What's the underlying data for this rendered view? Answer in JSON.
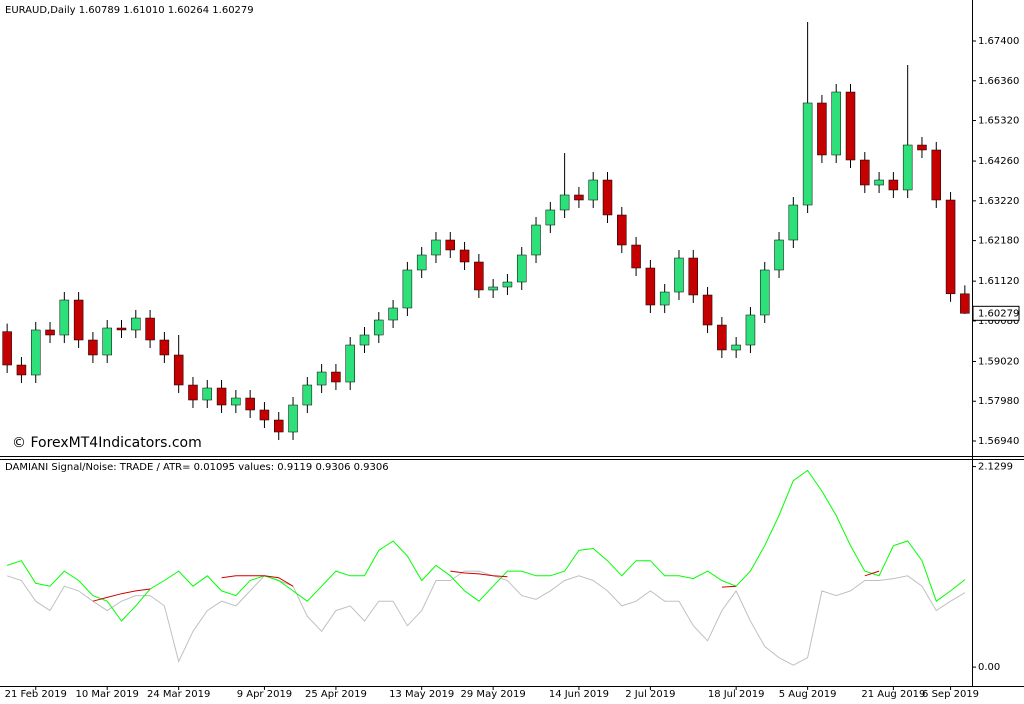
{
  "chart_data": [
    {
      "type": "candlestick",
      "title": "EURAUD,Daily  1.60789 1.61010 1.60264 1.60279",
      "watermark": "© ForexMT4Indicators.com",
      "last_price_label": "1.60279",
      "categories": [
        null,
        null,
        "21 Feb 2019",
        null,
        null,
        null,
        null,
        "10 Mar 2019",
        null,
        null,
        null,
        null,
        "24 Mar 2019",
        null,
        null,
        null,
        null,
        null,
        "9 Apr 2019",
        null,
        null,
        null,
        null,
        "25 Apr 2019",
        null,
        null,
        null,
        null,
        null,
        "13 May 2019",
        null,
        null,
        null,
        null,
        "29 May 2019",
        null,
        null,
        null,
        null,
        null,
        "14 Jun 2019",
        null,
        null,
        null,
        null,
        "2 Jul 2019",
        null,
        null,
        null,
        null,
        null,
        "18 Jul 2019",
        null,
        null,
        null,
        null,
        "5 Aug 2019",
        null,
        null,
        null,
        null,
        null,
        "21 Aug 2019",
        null,
        null,
        null,
        "6 Sep 2019",
        null
      ],
      "open": [
        1.598,
        1.58927,
        1.58666,
        1.59843,
        1.59712,
        1.60627,
        1.59581,
        1.59189,
        1.59895,
        1.59843,
        1.60156,
        1.59581,
        1.59189,
        1.58404,
        1.58012,
        1.58326,
        1.57881,
        1.58064,
        1.57751,
        1.57489,
        1.57175,
        1.57881,
        1.58404,
        1.58744,
        1.58483,
        1.5945,
        1.59712,
        1.60104,
        1.60418,
        1.61412,
        1.61804,
        1.62196,
        1.61935,
        1.61621,
        1.60889,
        1.60967,
        1.61098,
        1.61804,
        1.62588,
        1.62981,
        1.63373,
        1.63242,
        1.63765,
        1.6285,
        1.62065,
        1.61464,
        1.60496,
        1.60836,
        1.61725,
        1.60758,
        1.59973,
        1.5932,
        1.5945,
        1.60235,
        1.61412,
        1.62196,
        1.63111,
        1.65779,
        1.64419,
        1.66066,
        1.64288,
        1.63634,
        1.63765,
        1.63504,
        1.6468,
        1.6455,
        1.63242,
        1.60789
      ],
      "high": [
        1.6001,
        1.59137,
        1.60053,
        1.60053,
        1.60837,
        1.60837,
        1.59791,
        1.60105,
        1.60105,
        1.60366,
        1.60366,
        1.59791,
        1.59712,
        1.58614,
        1.58536,
        1.58536,
        1.58274,
        1.58274,
        1.57961,
        1.57699,
        1.58091,
        1.58614,
        1.58954,
        1.58954,
        1.5966,
        1.59922,
        1.60314,
        1.60628,
        1.61622,
        1.62014,
        1.62406,
        1.62406,
        1.62145,
        1.61831,
        1.61177,
        1.61308,
        1.62014,
        1.62798,
        1.63191,
        1.6447,
        1.63583,
        1.63975,
        1.63975,
        1.6306,
        1.62275,
        1.61674,
        1.61046,
        1.61935,
        1.61935,
        1.60968,
        1.60183,
        1.5966,
        1.60445,
        1.61622,
        1.62406,
        1.63321,
        1.67897,
        1.65989,
        1.66276,
        1.66276,
        1.64498,
        1.63975,
        1.63975,
        1.66772,
        1.6489,
        1.6476,
        1.63452,
        1.6101
      ],
      "low": [
        1.58717,
        1.58456,
        1.58456,
        1.59502,
        1.59502,
        1.59371,
        1.58979,
        1.58979,
        1.59633,
        1.59633,
        1.59371,
        1.58979,
        1.58194,
        1.57802,
        1.57802,
        1.57671,
        1.57671,
        1.57541,
        1.57279,
        1.56965,
        1.56965,
        1.57671,
        1.58194,
        1.58273,
        1.58273,
        1.5924,
        1.59502,
        1.59894,
        1.60208,
        1.61202,
        1.61594,
        1.61725,
        1.61411,
        1.60679,
        1.60679,
        1.60757,
        1.60888,
        1.61594,
        1.62378,
        1.62771,
        1.63032,
        1.63032,
        1.6264,
        1.61855,
        1.61254,
        1.60286,
        1.60286,
        1.60626,
        1.60548,
        1.59763,
        1.5911,
        1.5911,
        1.5924,
        1.60025,
        1.61202,
        1.61986,
        1.62901,
        1.64209,
        1.64209,
        1.64078,
        1.63424,
        1.63424,
        1.63294,
        1.63294,
        1.6434,
        1.63032,
        1.60579,
        1.60264
      ],
      "close": [
        1.58927,
        1.58666,
        1.59843,
        1.59712,
        1.60627,
        1.59581,
        1.59189,
        1.59895,
        1.59843,
        1.60156,
        1.59581,
        1.59189,
        1.58404,
        1.58012,
        1.58326,
        1.57881,
        1.58064,
        1.57751,
        1.57489,
        1.57175,
        1.57881,
        1.58404,
        1.58744,
        1.58483,
        1.5945,
        1.59712,
        1.60104,
        1.60418,
        1.61412,
        1.61804,
        1.62196,
        1.61935,
        1.61621,
        1.60889,
        1.60967,
        1.61098,
        1.61804,
        1.62588,
        1.62981,
        1.63373,
        1.63242,
        1.63765,
        1.6285,
        1.62065,
        1.61464,
        1.60496,
        1.60836,
        1.61725,
        1.60758,
        1.59973,
        1.5932,
        1.5945,
        1.60235,
        1.61412,
        1.62196,
        1.63111,
        1.65779,
        1.64419,
        1.66066,
        1.64288,
        1.63634,
        1.63765,
        1.63504,
        1.6468,
        1.6455,
        1.63242,
        1.60789,
        1.60279
      ],
      "up_color": "#2ee07a",
      "down_color": "#c40000",
      "ylim": [
        1.56574,
        1.68472
      ],
      "yticks": [
        {
          "value": 1.674,
          "label": "1.67400"
        },
        {
          "value": 1.6636,
          "label": "1.66360"
        },
        {
          "value": 1.6532,
          "label": "1.65320"
        },
        {
          "value": 1.6426,
          "label": "1.64260"
        },
        {
          "value": 1.6322,
          "label": "1.63220"
        },
        {
          "value": 1.6218,
          "label": "1.62180"
        },
        {
          "value": 1.6112,
          "label": "1.61120"
        },
        {
          "value": 1.6008,
          "label": "1.60080"
        },
        {
          "value": 1.5902,
          "label": "1.59020"
        },
        {
          "value": 1.5798,
          "label": "1.57980"
        },
        {
          "value": 1.5694,
          "label": "1.56940"
        }
      ]
    },
    {
      "type": "line",
      "title": "DAMIANI Signal/Noise: TRADE  /  ATR= 0.01095   values: 0.9119 0.9306 0.9306",
      "series": [
        {
          "color": "#c0c0c0",
          "values": [
            0.97,
            0.92,
            0.7,
            0.6,
            0.86,
            0.81,
            0.7,
            0.6,
            0.7,
            0.76,
            0.76,
            0.65,
            0.06,
            0.38,
            0.6,
            0.7,
            0.65,
            0.81,
            0.97,
            0.92,
            0.86,
            0.54,
            0.38,
            0.6,
            0.65,
            0.49,
            0.7,
            0.7,
            0.44,
            0.6,
            0.92,
            0.92,
            1.02,
            1.02,
            0.97,
            0.92,
            0.76,
            0.72,
            0.81,
            0.92,
            0.97,
            0.92,
            0.81,
            0.65,
            0.7,
            0.81,
            0.7,
            0.7,
            0.44,
            0.28,
            0.6,
            0.81,
            0.49,
            0.22,
            0.1,
            0.02,
            0.1,
            0.81,
            0.76,
            0.81,
            0.92,
            0.92,
            0.94,
            0.97,
            0.86,
            0.6,
            0.7,
            0.79
          ]
        },
        {
          "color": "#00ff00",
          "values": [
            1.08,
            1.13,
            0.89,
            0.86,
            1.02,
            0.92,
            0.76,
            0.7,
            0.49,
            0.65,
            0.83,
            0.92,
            1.02,
            0.86,
            0.97,
            0.81,
            0.76,
            0.92,
            0.97,
            0.92,
            0.81,
            0.7,
            0.86,
            1.02,
            0.97,
            0.97,
            1.24,
            1.34,
            1.18,
            0.92,
            1.08,
            0.97,
            0.81,
            0.7,
            0.86,
            1.02,
            1.02,
            0.97,
            0.97,
            1.02,
            1.24,
            1.26,
            1.13,
            0.97,
            1.13,
            1.13,
            0.97,
            0.97,
            0.94,
            1.02,
            0.92,
            0.86,
            1.02,
            1.29,
            1.61,
            1.98,
            2.09,
            1.87,
            1.61,
            1.29,
            1.02,
            0.97,
            1.29,
            1.34,
            1.13,
            0.7,
            0.81,
            0.93
          ]
        },
        {
          "color": "#d00000",
          "values": [
            null,
            null,
            null,
            null,
            null,
            null,
            0.7,
            0.74,
            0.78,
            0.81,
            0.83,
            null,
            null,
            null,
            null,
            0.95,
            0.97,
            0.97,
            0.97,
            0.95,
            0.86,
            null,
            null,
            null,
            null,
            null,
            null,
            null,
            null,
            null,
            null,
            1.02,
            1.0,
            0.99,
            0.97,
            0.96,
            null,
            null,
            null,
            null,
            null,
            null,
            null,
            null,
            null,
            null,
            null,
            null,
            null,
            null,
            0.85,
            0.86,
            null,
            null,
            null,
            null,
            null,
            null,
            null,
            null,
            0.97,
            1.02,
            null,
            null,
            null,
            null,
            null,
            null
          ]
        }
      ],
      "ylim": [
        -0.19,
        2.2
      ],
      "yticks": [
        2.1299,
        {
          "value": 0,
          "label": "0.00"
        }
      ]
    }
  ]
}
